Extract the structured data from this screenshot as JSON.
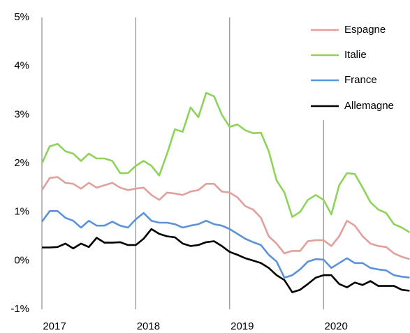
{
  "chart_data": {
    "type": "line",
    "categories": [
      "2017",
      null,
      null,
      null,
      null,
      null,
      null,
      null,
      null,
      null,
      null,
      null,
      "2018",
      null,
      null,
      null,
      null,
      null,
      null,
      null,
      null,
      null,
      null,
      null,
      "2019",
      null,
      null,
      null,
      null,
      null,
      null,
      null,
      null,
      null,
      null,
      null,
      "2020",
      null,
      null,
      null,
      null,
      null,
      null,
      null,
      null,
      null,
      null,
      null
    ],
    "series": [
      {
        "name": "Espagne",
        "color": "#e0a09c",
        "values": [
          1.45,
          1.7,
          1.72,
          1.6,
          1.58,
          1.48,
          1.6,
          1.5,
          1.55,
          1.6,
          1.5,
          1.45,
          1.48,
          1.5,
          1.35,
          1.25,
          1.4,
          1.38,
          1.35,
          1.42,
          1.45,
          1.58,
          1.58,
          1.42,
          1.4,
          1.3,
          1.12,
          1.05,
          0.88,
          0.5,
          0.35,
          0.15,
          0.2,
          0.2,
          0.4,
          0.42,
          0.42,
          0.3,
          0.5,
          0.82,
          0.72,
          0.5,
          0.35,
          0.3,
          0.28,
          0.15,
          0.08,
          0.03
        ]
      },
      {
        "name": "Italie",
        "color": "#8ed45a",
        "values": [
          2.0,
          2.35,
          2.4,
          2.25,
          2.2,
          2.05,
          2.2,
          2.1,
          2.1,
          2.05,
          1.8,
          1.8,
          1.95,
          2.05,
          1.95,
          1.75,
          2.2,
          2.7,
          2.65,
          3.15,
          2.95,
          3.45,
          3.38,
          3.0,
          2.75,
          2.8,
          2.68,
          2.62,
          2.63,
          2.25,
          1.65,
          1.4,
          0.9,
          1.0,
          1.25,
          1.35,
          1.25,
          0.95,
          1.55,
          1.8,
          1.78,
          1.5,
          1.2,
          1.05,
          0.98,
          0.75,
          0.68,
          0.58
        ]
      },
      {
        "name": "France",
        "color": "#5b93d9",
        "values": [
          0.8,
          1.02,
          1.02,
          0.88,
          0.82,
          0.68,
          0.82,
          0.72,
          0.72,
          0.8,
          0.72,
          0.68,
          0.85,
          0.98,
          0.82,
          0.78,
          0.78,
          0.75,
          0.68,
          0.72,
          0.75,
          0.82,
          0.75,
          0.72,
          0.65,
          0.55,
          0.45,
          0.38,
          0.32,
          0.12,
          -0.02,
          -0.35,
          -0.3,
          -0.18,
          -0.02,
          0.03,
          0.02,
          -0.15,
          -0.05,
          0.05,
          -0.05,
          -0.05,
          -0.15,
          -0.18,
          -0.2,
          -0.3,
          -0.33,
          -0.35
        ]
      },
      {
        "name": "Allemagne",
        "color": "#000000",
        "values": [
          0.27,
          0.27,
          0.28,
          0.35,
          0.25,
          0.35,
          0.28,
          0.47,
          0.37,
          0.37,
          0.38,
          0.32,
          0.32,
          0.45,
          0.65,
          0.55,
          0.5,
          0.48,
          0.35,
          0.3,
          0.32,
          0.38,
          0.4,
          0.3,
          0.18,
          0.12,
          0.05,
          0.0,
          -0.05,
          -0.15,
          -0.3,
          -0.4,
          -0.65,
          -0.6,
          -0.48,
          -0.35,
          -0.3,
          -0.3,
          -0.48,
          -0.55,
          -0.45,
          -0.5,
          -0.42,
          -0.52,
          -0.52,
          -0.52,
          -0.6,
          -0.62
        ]
      }
    ],
    "ylim": [
      -1,
      5
    ],
    "yticks": [
      {
        "value": -1,
        "label": "-1%"
      },
      {
        "value": 0,
        "label": "0%"
      },
      {
        "value": 1,
        "label": "1%"
      },
      {
        "value": 2,
        "label": "2%"
      },
      {
        "value": 3,
        "label": "3%"
      },
      {
        "value": 4,
        "label": "4%"
      },
      {
        "value": 5,
        "label": "5%"
      }
    ],
    "legend": "top-right"
  }
}
